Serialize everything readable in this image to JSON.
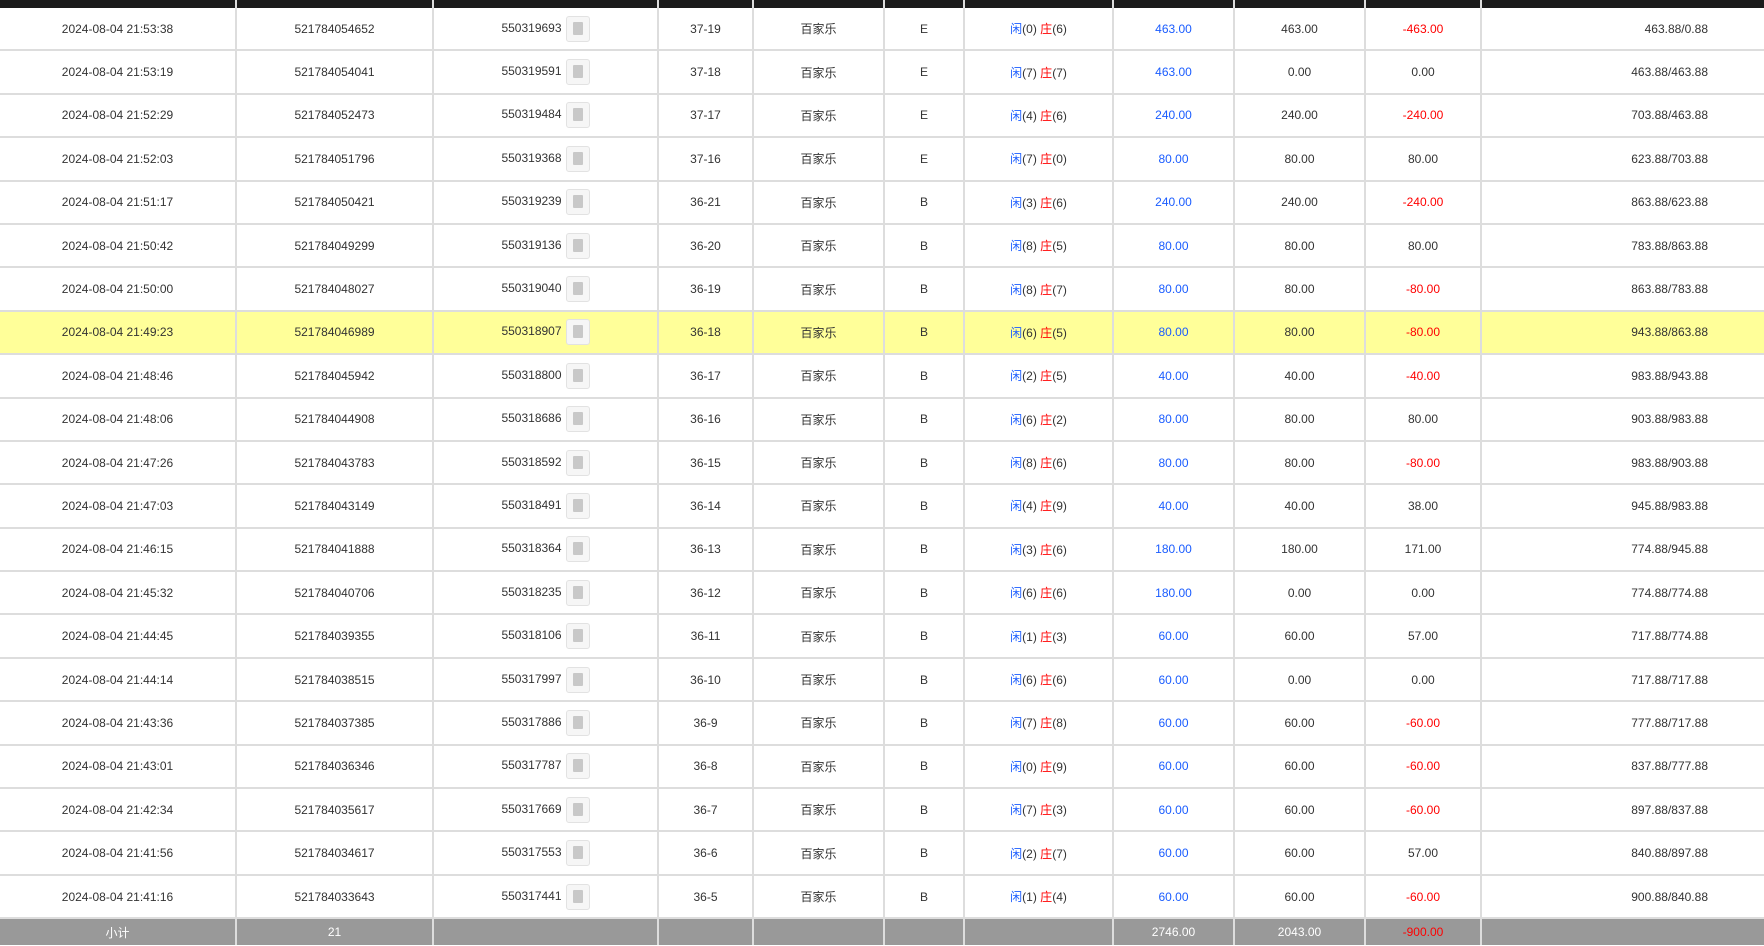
{
  "player_label": "闲",
  "banker_label": "庄",
  "highlight_index": 7,
  "rows": [
    {
      "time": "2024-08-04 21:53:38",
      "order": "521784054652",
      "id": "550319693",
      "round": "37-19",
      "game": "百家乐",
      "table": "E",
      "player": "0",
      "banker": "6",
      "bet": "463.00",
      "valid": "463.00",
      "win": "-463.00",
      "balance": "463.88/0.88"
    },
    {
      "time": "2024-08-04 21:53:19",
      "order": "521784054041",
      "id": "550319591",
      "round": "37-18",
      "game": "百家乐",
      "table": "E",
      "player": "7",
      "banker": "7",
      "bet": "463.00",
      "valid": "0.00",
      "win": "0.00",
      "balance": "463.88/463.88"
    },
    {
      "time": "2024-08-04 21:52:29",
      "order": "521784052473",
      "id": "550319484",
      "round": "37-17",
      "game": "百家乐",
      "table": "E",
      "player": "4",
      "banker": "6",
      "bet": "240.00",
      "valid": "240.00",
      "win": "-240.00",
      "balance": "703.88/463.88"
    },
    {
      "time": "2024-08-04 21:52:03",
      "order": "521784051796",
      "id": "550319368",
      "round": "37-16",
      "game": "百家乐",
      "table": "E",
      "player": "7",
      "banker": "0",
      "bet": "80.00",
      "valid": "80.00",
      "win": "80.00",
      "balance": "623.88/703.88"
    },
    {
      "time": "2024-08-04 21:51:17",
      "order": "521784050421",
      "id": "550319239",
      "round": "36-21",
      "game": "百家乐",
      "table": "B",
      "player": "3",
      "banker": "6",
      "bet": "240.00",
      "valid": "240.00",
      "win": "-240.00",
      "balance": "863.88/623.88"
    },
    {
      "time": "2024-08-04 21:50:42",
      "order": "521784049299",
      "id": "550319136",
      "round": "36-20",
      "game": "百家乐",
      "table": "B",
      "player": "8",
      "banker": "5",
      "bet": "80.00",
      "valid": "80.00",
      "win": "80.00",
      "balance": "783.88/863.88"
    },
    {
      "time": "2024-08-04 21:50:00",
      "order": "521784048027",
      "id": "550319040",
      "round": "36-19",
      "game": "百家乐",
      "table": "B",
      "player": "8",
      "banker": "7",
      "bet": "80.00",
      "valid": "80.00",
      "win": "-80.00",
      "balance": "863.88/783.88"
    },
    {
      "time": "2024-08-04 21:49:23",
      "order": "521784046989",
      "id": "550318907",
      "round": "36-18",
      "game": "百家乐",
      "table": "B",
      "player": "6",
      "banker": "5",
      "bet": "80.00",
      "valid": "80.00",
      "win": "-80.00",
      "balance": "943.88/863.88"
    },
    {
      "time": "2024-08-04 21:48:46",
      "order": "521784045942",
      "id": "550318800",
      "round": "36-17",
      "game": "百家乐",
      "table": "B",
      "player": "2",
      "banker": "5",
      "bet": "40.00",
      "valid": "40.00",
      "win": "-40.00",
      "balance": "983.88/943.88"
    },
    {
      "time": "2024-08-04 21:48:06",
      "order": "521784044908",
      "id": "550318686",
      "round": "36-16",
      "game": "百家乐",
      "table": "B",
      "player": "6",
      "banker": "2",
      "bet": "80.00",
      "valid": "80.00",
      "win": "80.00",
      "balance": "903.88/983.88"
    },
    {
      "time": "2024-08-04 21:47:26",
      "order": "521784043783",
      "id": "550318592",
      "round": "36-15",
      "game": "百家乐",
      "table": "B",
      "player": "8",
      "banker": "6",
      "bet": "80.00",
      "valid": "80.00",
      "win": "-80.00",
      "balance": "983.88/903.88"
    },
    {
      "time": "2024-08-04 21:47:03",
      "order": "521784043149",
      "id": "550318491",
      "round": "36-14",
      "game": "百家乐",
      "table": "B",
      "player": "4",
      "banker": "9",
      "bet": "40.00",
      "valid": "40.00",
      "win": "38.00",
      "balance": "945.88/983.88"
    },
    {
      "time": "2024-08-04 21:46:15",
      "order": "521784041888",
      "id": "550318364",
      "round": "36-13",
      "game": "百家乐",
      "table": "B",
      "player": "3",
      "banker": "6",
      "bet": "180.00",
      "valid": "180.00",
      "win": "171.00",
      "balance": "774.88/945.88"
    },
    {
      "time": "2024-08-04 21:45:32",
      "order": "521784040706",
      "id": "550318235",
      "round": "36-12",
      "game": "百家乐",
      "table": "B",
      "player": "6",
      "banker": "6",
      "bet": "180.00",
      "valid": "0.00",
      "win": "0.00",
      "balance": "774.88/774.88"
    },
    {
      "time": "2024-08-04 21:44:45",
      "order": "521784039355",
      "id": "550318106",
      "round": "36-11",
      "game": "百家乐",
      "table": "B",
      "player": "1",
      "banker": "3",
      "bet": "60.00",
      "valid": "60.00",
      "win": "57.00",
      "balance": "717.88/774.88"
    },
    {
      "time": "2024-08-04 21:44:14",
      "order": "521784038515",
      "id": "550317997",
      "round": "36-10",
      "game": "百家乐",
      "table": "B",
      "player": "6",
      "banker": "6",
      "bet": "60.00",
      "valid": "0.00",
      "win": "0.00",
      "balance": "717.88/717.88"
    },
    {
      "time": "2024-08-04 21:43:36",
      "order": "521784037385",
      "id": "550317886",
      "round": "36-9",
      "game": "百家乐",
      "table": "B",
      "player": "7",
      "banker": "8",
      "bet": "60.00",
      "valid": "60.00",
      "win": "-60.00",
      "balance": "777.88/717.88"
    },
    {
      "time": "2024-08-04 21:43:01",
      "order": "521784036346",
      "id": "550317787",
      "round": "36-8",
      "game": "百家乐",
      "table": "B",
      "player": "0",
      "banker": "9",
      "bet": "60.00",
      "valid": "60.00",
      "win": "-60.00",
      "balance": "837.88/777.88"
    },
    {
      "time": "2024-08-04 21:42:34",
      "order": "521784035617",
      "id": "550317669",
      "round": "36-7",
      "game": "百家乐",
      "table": "B",
      "player": "7",
      "banker": "3",
      "bet": "60.00",
      "valid": "60.00",
      "win": "-60.00",
      "balance": "897.88/837.88"
    },
    {
      "time": "2024-08-04 21:41:56",
      "order": "521784034617",
      "id": "550317553",
      "round": "36-6",
      "game": "百家乐",
      "table": "B",
      "player": "2",
      "banker": "7",
      "bet": "60.00",
      "valid": "60.00",
      "win": "57.00",
      "balance": "840.88/897.88"
    },
    {
      "time": "2024-08-04 21:41:16",
      "order": "521784033643",
      "id": "550317441",
      "round": "36-5",
      "game": "百家乐",
      "table": "B",
      "player": "1",
      "banker": "4",
      "bet": "60.00",
      "valid": "60.00",
      "win": "-60.00",
      "balance": "900.88/840.88"
    }
  ],
  "footer": {
    "label": "小计",
    "count": "21",
    "bet_total": "2746.00",
    "valid_total": "2043.00",
    "win_total": "-900.00"
  },
  "colors": {
    "bet": "#1a5cff",
    "negative": "#ff0000",
    "highlight": "#ffff99",
    "footer": "#999999"
  }
}
